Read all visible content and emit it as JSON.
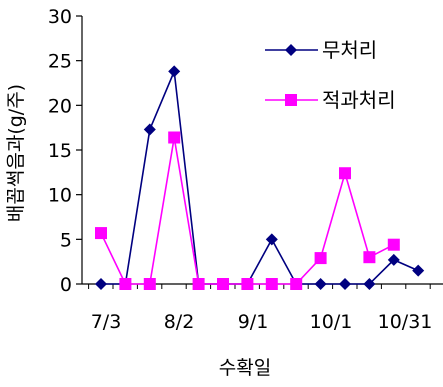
{
  "chart_data": {
    "type": "line",
    "title": "",
    "xlabel": "수확일",
    "ylabel": "배꼽썩음과(g/주)",
    "ylim": [
      0,
      30
    ],
    "yticks": [
      0,
      5,
      10,
      15,
      20,
      25,
      30
    ],
    "x_tick_labels": [
      "7/3",
      "8/2",
      "9/1",
      "10/1",
      "10/31"
    ],
    "grid": false,
    "legend_position": "top-right",
    "series": [
      {
        "name": "무처리",
        "color": "#000080",
        "marker": "diamond",
        "values": [
          0,
          0,
          17.3,
          23.8,
          0,
          0,
          0,
          5,
          0,
          0,
          0,
          0,
          2.7,
          1.5
        ]
      },
      {
        "name": "적과처리",
        "color": "#ff00ff",
        "marker": "square",
        "values": [
          5.7,
          0,
          0,
          16.4,
          0,
          0,
          0,
          0,
          0,
          2.9,
          12.4,
          3,
          4.4
        ]
      }
    ]
  }
}
